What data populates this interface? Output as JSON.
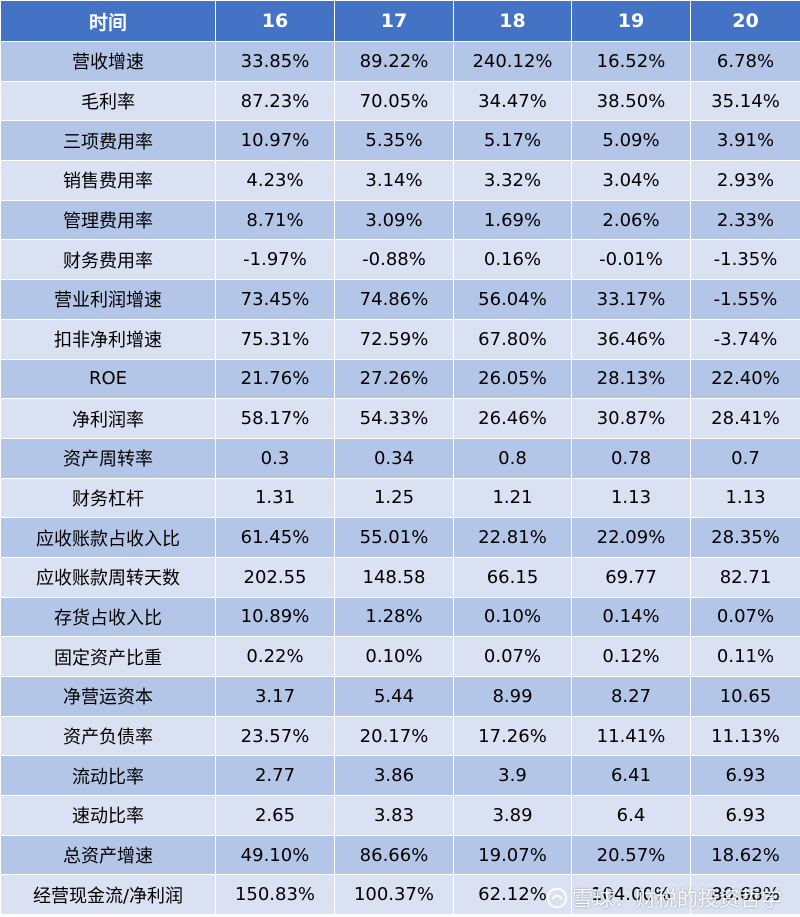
{
  "header": [
    "时间",
    "16",
    "17",
    "18",
    "19",
    "20"
  ],
  "rows": [
    [
      "营收增速",
      "33.85%",
      "89.22%",
      "240.12%",
      "16.52%",
      "6.78%"
    ],
    [
      "毛利率",
      "87.23%",
      "70.05%",
      "34.47%",
      "38.50%",
      "35.14%"
    ],
    [
      "三项费用率",
      "10.97%",
      "5.35%",
      "5.17%",
      "5.09%",
      "3.91%"
    ],
    [
      "销售费用率",
      "4.23%",
      "3.14%",
      "3.32%",
      "3.04%",
      "2.93%"
    ],
    [
      "管理费用率",
      "8.71%",
      "3.09%",
      "1.69%",
      "2.06%",
      "2.33%"
    ],
    [
      "财务费用率",
      "-1.97%",
      "-0.88%",
      "0.16%",
      "-0.01%",
      "-1.35%"
    ],
    [
      "营业利润增速",
      "73.45%",
      "74.86%",
      "56.04%",
      "33.17%",
      "-1.55%"
    ],
    [
      "扣非净利增速",
      "75.31%",
      "72.59%",
      "67.80%",
      "36.46%",
      "-3.74%"
    ],
    [
      "ROE",
      "21.76%",
      "27.26%",
      "26.05%",
      "28.13%",
      "22.40%"
    ],
    [
      "净利润率",
      "58.17%",
      "54.33%",
      "26.46%",
      "30.87%",
      "28.41%"
    ],
    [
      "资产周转率",
      "0.3",
      "0.34",
      "0.8",
      "0.78",
      "0.7"
    ],
    [
      "财务杠杆",
      "1.31",
      "1.25",
      "1.21",
      "1.13",
      "1.13"
    ],
    [
      "应收账款占收入比",
      "61.45%",
      "55.01%",
      "22.81%",
      "22.09%",
      "28.35%"
    ],
    [
      "应收账款周转天数",
      "202.55",
      "148.58",
      "66.15",
      "69.77",
      "82.71"
    ],
    [
      "存货占收入比",
      "10.89%",
      "1.28%",
      "0.10%",
      "0.14%",
      "0.07%"
    ],
    [
      "固定资产比重",
      "0.22%",
      "0.10%",
      "0.07%",
      "0.12%",
      "0.11%"
    ],
    [
      "净营运资本",
      "3.17",
      "5.44",
      "8.99",
      "8.27",
      "10.65"
    ],
    [
      "资产负债率",
      "23.57%",
      "20.17%",
      "17.26%",
      "11.41%",
      "11.13%"
    ],
    [
      "流动比率",
      "2.77",
      "3.86",
      "3.9",
      "6.41",
      "6.93"
    ],
    [
      "速动比率",
      "2.65",
      "3.83",
      "3.89",
      "6.4",
      "6.93"
    ],
    [
      "总资产增速",
      "49.10%",
      "86.66%",
      "19.07%",
      "20.57%",
      "18.62%"
    ],
    [
      "经营现金流/净利润",
      "150.83%",
      "100.37%",
      "62.12%",
      "104.00%",
      "80.68%"
    ]
  ],
  "watermark": {
    "icon": "snowball-logo-icon",
    "text": "雪球：财税的投资哲学"
  },
  "colors": {
    "header_bg": "#4472c4",
    "row_odd": "#b4c6e7",
    "row_even": "#d9e1f2"
  }
}
